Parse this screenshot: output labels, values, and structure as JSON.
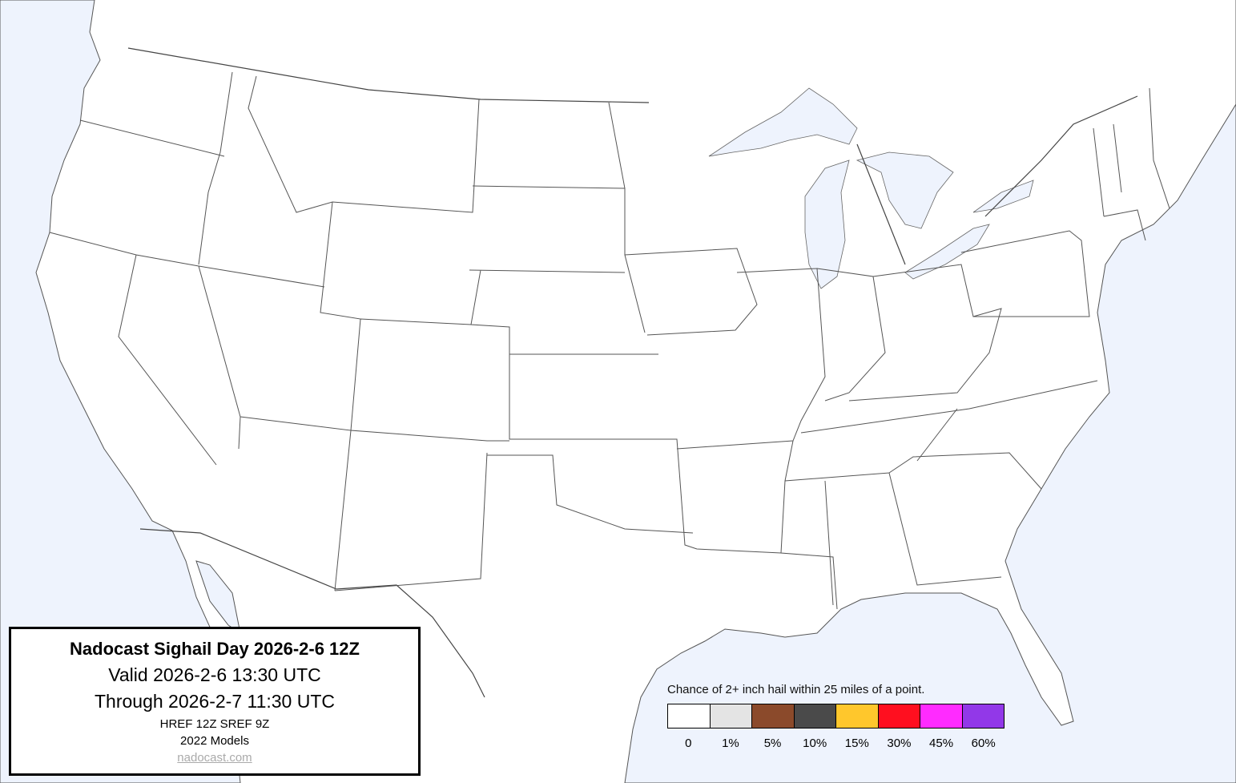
{
  "title_box": {
    "title": "Nadocast Sighail Day 2026-2-6 12Z",
    "valid": "Valid 2026-2-6 13:30 UTC",
    "through": "Through 2026-2-7 11:30 UTC",
    "models_run": "HREF 12Z SREF 9Z",
    "model_version": "2022 Models",
    "link": "nadocast.com"
  },
  "legend": {
    "caption": "Chance of 2+ inch hail within 25 miles of a point.",
    "bins": [
      {
        "label": "0",
        "color": "#ffffff"
      },
      {
        "label": "1%",
        "color": "#e4e4e4"
      },
      {
        "label": "5%",
        "color": "#8b4a2b"
      },
      {
        "label": "10%",
        "color": "#4a4a4a"
      },
      {
        "label": "15%",
        "color": "#ffc72c"
      },
      {
        "label": "30%",
        "color": "#ff0f1f"
      },
      {
        "label": "45%",
        "color": "#ff2bff"
      },
      {
        "label": "60%",
        "color": "#9238e8"
      }
    ]
  },
  "map": {
    "water_color": "#eef3fd",
    "land_color": "#ffffff",
    "hail_areas": []
  }
}
